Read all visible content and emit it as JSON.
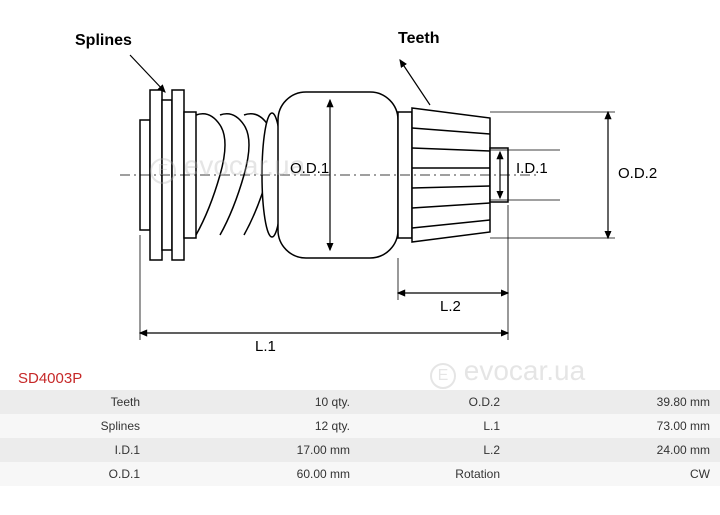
{
  "diagram": {
    "labels": {
      "splines": "Splines",
      "teeth": "Teeth",
      "od1": "O.D.1",
      "od2": "O.D.2",
      "id1": "I.D.1",
      "l1": "L.1",
      "l2": "L.2"
    },
    "colors": {
      "stroke": "#000000",
      "fill_light": "#ffffff",
      "fill_gray": "#e8e8e8",
      "part_number": "#c62828",
      "watermark": "rgba(180,180,180,0.35)"
    },
    "stroke_width": 1.5,
    "arrow_width": 1.2
  },
  "part_number": "SD4003P",
  "specs": [
    {
      "k1": "Teeth",
      "v1": "10 qty.",
      "k2": "O.D.2",
      "v2": "39.80 mm"
    },
    {
      "k1": "Splines",
      "v1": "12 qty.",
      "k2": "L.1",
      "v2": "73.00 mm"
    },
    {
      "k1": "I.D.1",
      "v1": "17.00 mm",
      "k2": "L.2",
      "v2": "24.00 mm"
    },
    {
      "k1": "O.D.1",
      "v1": "60.00 mm",
      "k2": "Rotation",
      "v2": "CW"
    }
  ],
  "watermark_text": "evocar.ua"
}
